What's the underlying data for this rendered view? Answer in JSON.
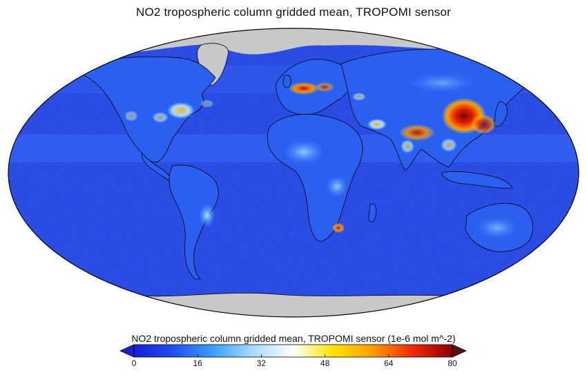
{
  "title": "NO2 tropospheric column gridded mean, TROPOMI sensor",
  "colorbar": {
    "label": "NO2 tropospheric column gridded mean, TROPOMI sensor (1e-6 mol m^-2)",
    "range": [
      0,
      80
    ],
    "ticks": [
      "0",
      "16",
      "32",
      "48",
      "64",
      "80"
    ],
    "extend": "both",
    "colors": [
      "#1a1fd6",
      "#1f4ff0",
      "#3aa0ff",
      "#a8dcff",
      "#ffffff",
      "#ffe400",
      "#ff9c00",
      "#f0280a",
      "#8b0000"
    ],
    "under_color": "#1a1fd6",
    "over_color": "#5a1010"
  },
  "map": {
    "projection": "robinson",
    "ocean_color": "#1d3fe0",
    "land_low_color": "#2a60f0",
    "nodata_color": "#c8c8c8",
    "hotspot_high": "#c81400",
    "hotspot_mid": "#ffb000"
  }
}
